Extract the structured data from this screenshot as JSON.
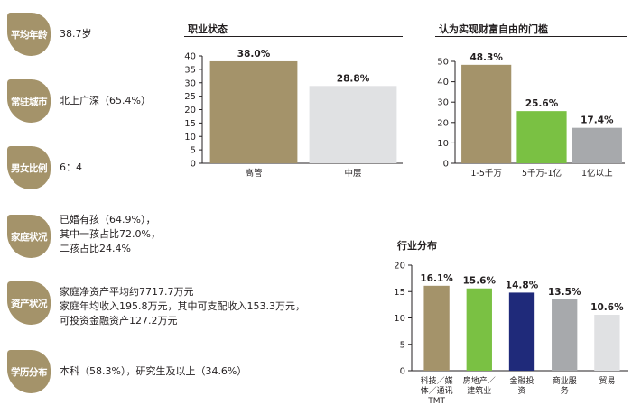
{
  "profile": [
    {
      "label": "平均年龄",
      "value": "38.7岁"
    },
    {
      "label": "常驻城市",
      "value": "北上广深（65.4%）"
    },
    {
      "label": "男女比例",
      "value": "6：4"
    },
    {
      "label": "家庭状况",
      "value": "已婚有孩（64.9%），\n其中一孩占比72.0%，\n二孩占比24.4%"
    },
    {
      "label": "资产状况",
      "value": "家庭净资产平均约7717.7万元\n家庭年均收入195.8万元，其中可支配收入153.3万元，\n可投资金融资产127.2万元"
    },
    {
      "label": "学历分布",
      "value": "本科（58.3%），研究生及以上（34.6%）"
    }
  ],
  "colors": {
    "gold": "#a4936a",
    "light_gray": "#e0e1e3",
    "green": "#7ac143",
    "navy": "#1f2a7a",
    "gray": "#a7a9ac",
    "text": "#231f20"
  },
  "chart_data": [
    {
      "id": "job",
      "type": "bar",
      "title": "职业状态",
      "categories": [
        "高管",
        "中层"
      ],
      "values": [
        38.0,
        28.8
      ],
      "labels": [
        "38.0%",
        "28.8%"
      ],
      "colors": [
        "#a4936a",
        "#e0e1e3"
      ],
      "ylim": [
        0,
        40
      ],
      "yticks": [
        0,
        5,
        10,
        15,
        20,
        25,
        30,
        35,
        40
      ]
    },
    {
      "id": "wealth",
      "type": "bar",
      "title": "认为实现财富自由的门槛",
      "categories": [
        "1-5千万",
        "5千万-1亿",
        "1亿以上"
      ],
      "values": [
        48.3,
        25.6,
        17.4
      ],
      "labels": [
        "48.3%",
        "25.6%",
        "17.4%"
      ],
      "colors": [
        "#a4936a",
        "#7ac143",
        "#a7a9ac"
      ],
      "ylim": [
        0,
        50
      ],
      "yticks": [
        0,
        10,
        20,
        30,
        40,
        50
      ]
    },
    {
      "id": "industry",
      "type": "bar",
      "title": "行业分布",
      "categories": [
        "科技／媒\n体／通讯\nTMT",
        "房地产／\n建筑业",
        "金融投\n资",
        "商业服\n务",
        "贸易"
      ],
      "values": [
        16.1,
        15.6,
        14.8,
        13.5,
        10.6
      ],
      "labels": [
        "16.1%",
        "15.6%",
        "14.8%",
        "13.5%",
        "10.6%"
      ],
      "colors": [
        "#a4936a",
        "#7ac143",
        "#1f2a7a",
        "#a7a9ac",
        "#e0e1e3"
      ],
      "ylim": [
        0,
        20
      ],
      "yticks": [
        0,
        5,
        10,
        15,
        20
      ]
    }
  ]
}
